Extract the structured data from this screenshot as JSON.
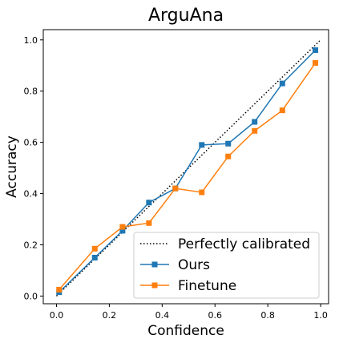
{
  "chart_data": {
    "type": "line",
    "title": "ArguAna",
    "xlabel": "Confidence",
    "ylabel": "Accuracy",
    "xlim": [
      -0.05,
      1.03
    ],
    "ylim": [
      -0.03,
      1.04
    ],
    "xticks": [
      "0.0",
      "0.2",
      "0.4",
      "0.6",
      "0.8",
      "1.0"
    ],
    "yticks": [
      "0.0",
      "0.2",
      "0.4",
      "0.6",
      "0.8",
      "1.0"
    ],
    "grid": false,
    "legend_position": "bottom-right",
    "series": [
      {
        "name": "Perfectly calibrated",
        "color": "#000000",
        "style": "dotted",
        "x": [
          0,
          1
        ],
        "y": [
          0,
          1
        ]
      },
      {
        "name": "Ours",
        "color": "#1f77b4",
        "style": "solid",
        "marker": "square",
        "x": [
          0.01,
          0.145,
          0.25,
          0.35,
          0.45,
          0.55,
          0.65,
          0.75,
          0.855,
          0.98
        ],
        "y": [
          0.015,
          0.15,
          0.255,
          0.365,
          0.42,
          0.59,
          0.595,
          0.68,
          0.83,
          0.96
        ]
      },
      {
        "name": "Finetune",
        "color": "#ff7f0e",
        "style": "solid",
        "marker": "square",
        "x": [
          0.01,
          0.145,
          0.25,
          0.35,
          0.45,
          0.55,
          0.65,
          0.75,
          0.855,
          0.98
        ],
        "y": [
          0.025,
          0.185,
          0.27,
          0.285,
          0.42,
          0.405,
          0.545,
          0.645,
          0.725,
          0.91
        ]
      }
    ]
  }
}
